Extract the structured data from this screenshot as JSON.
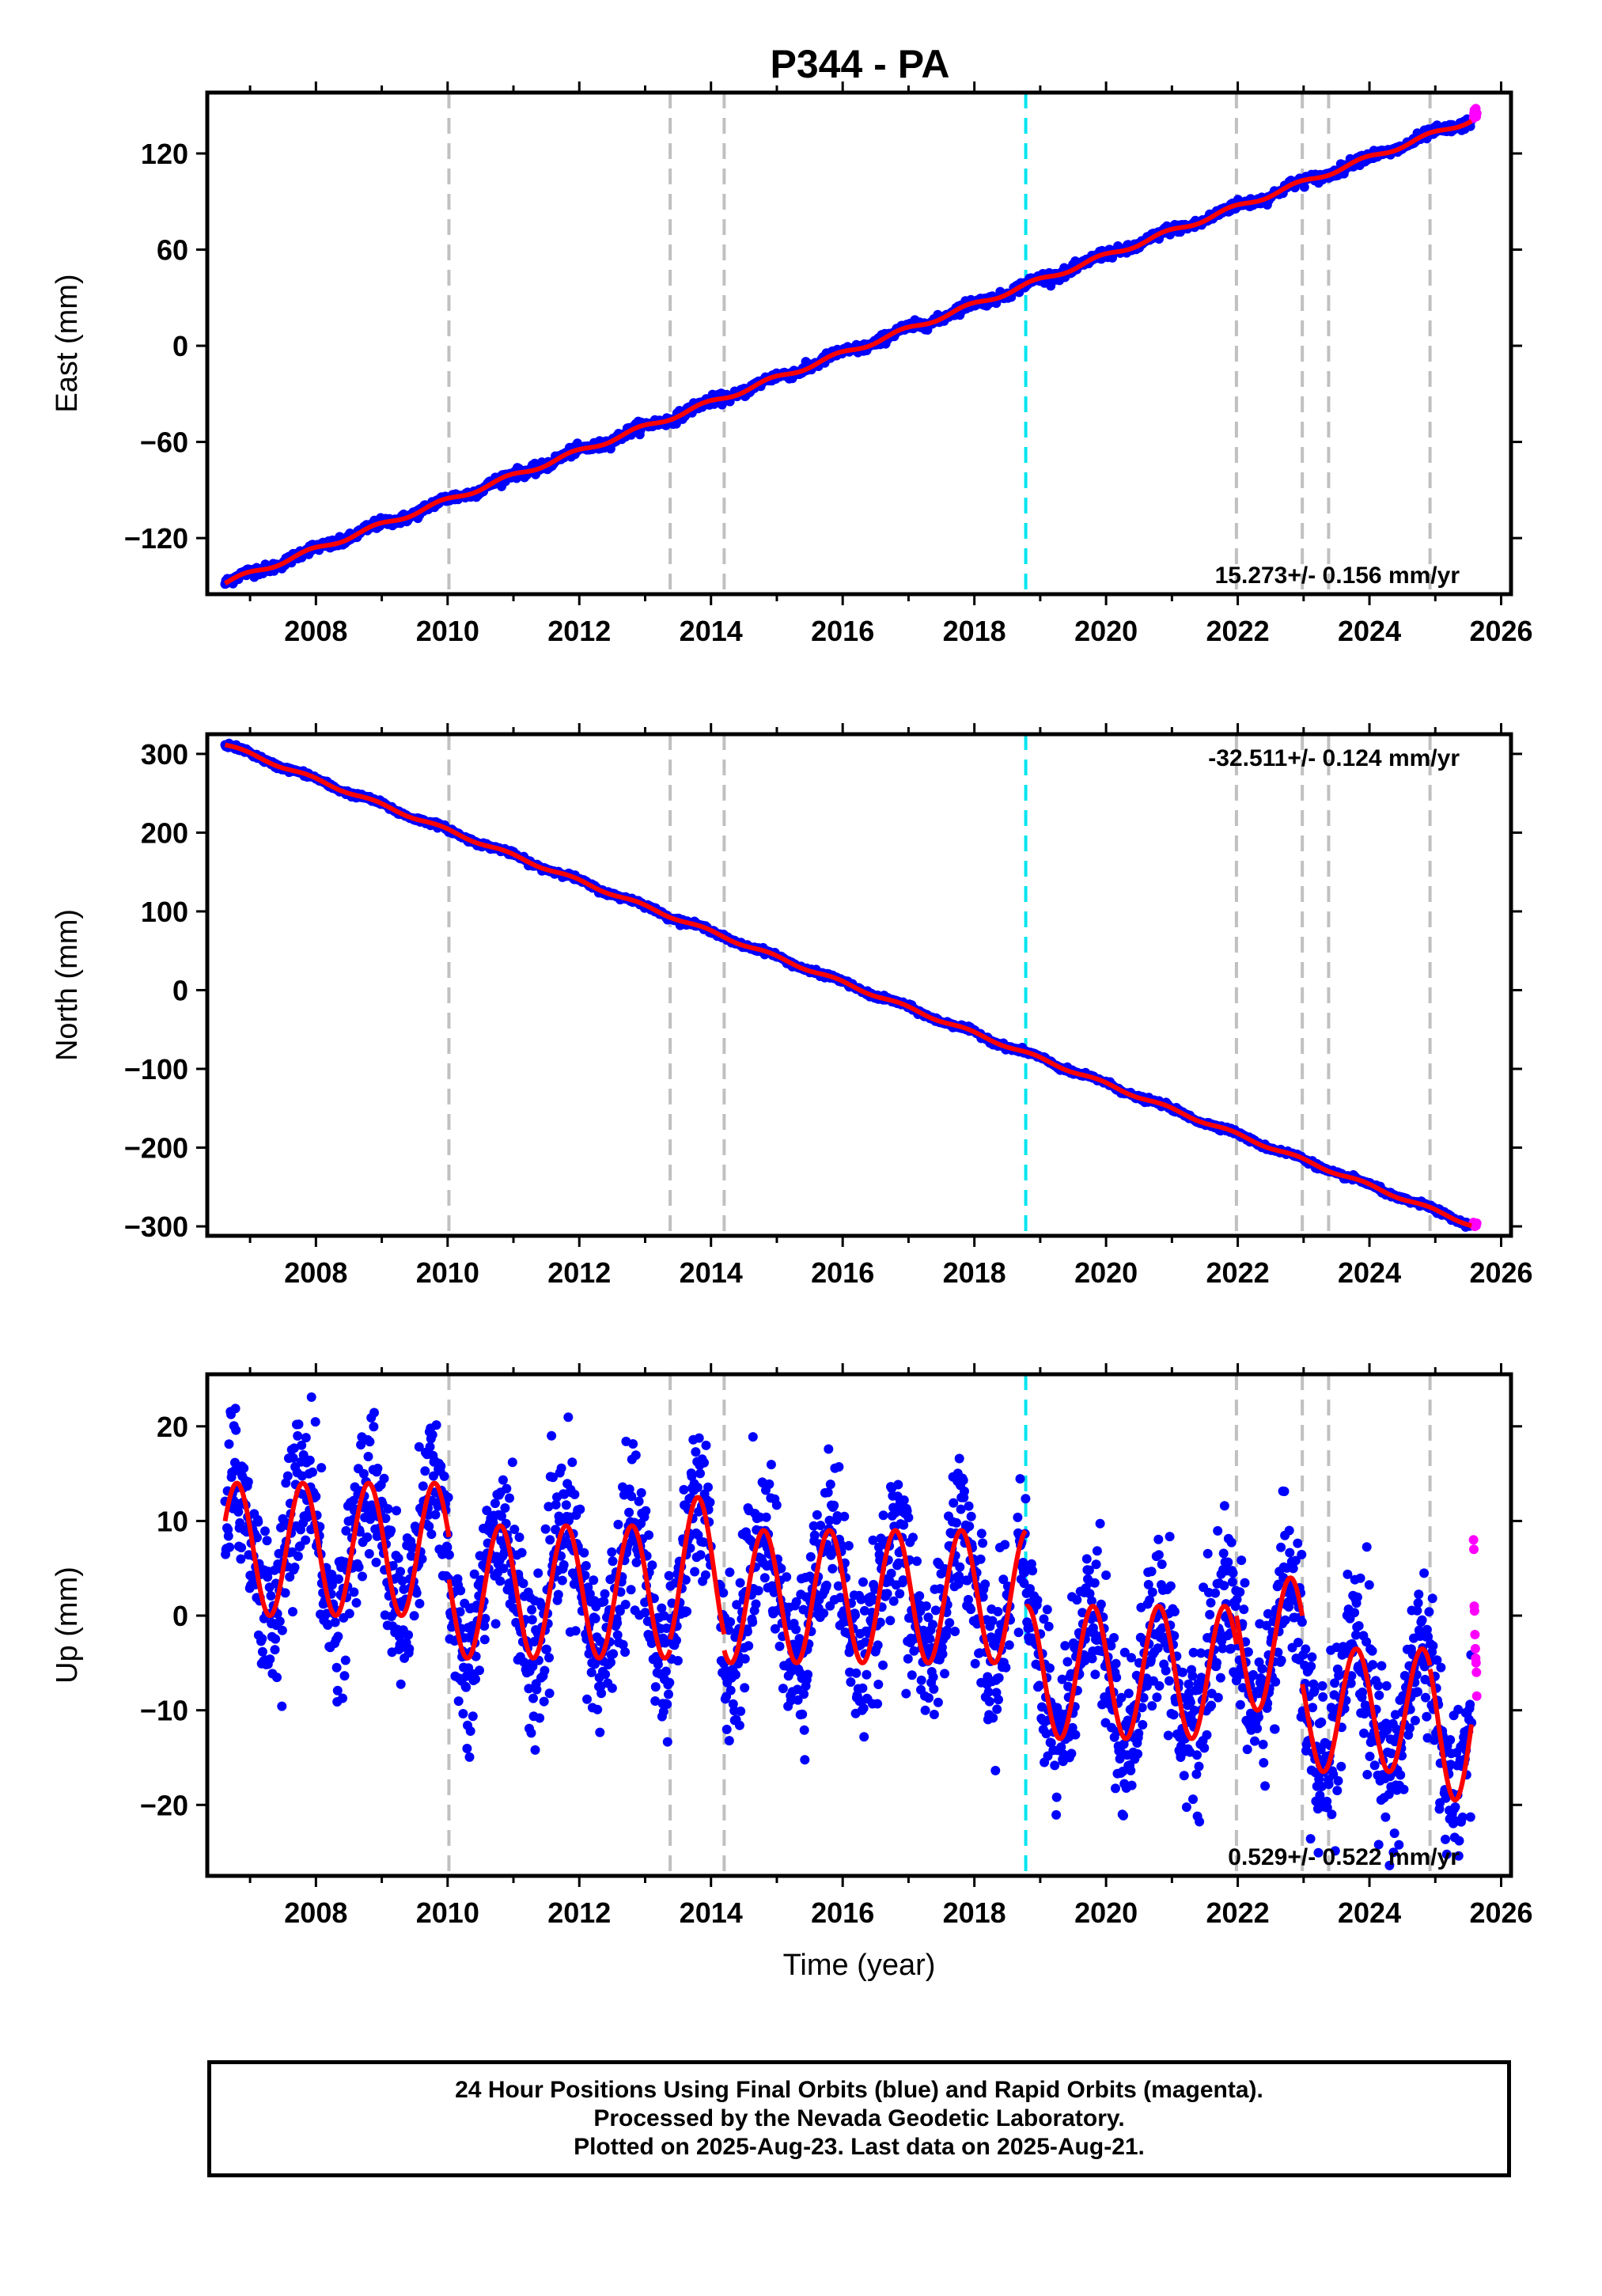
{
  "title": "P344 - PA",
  "footer": {
    "line1": "24 Hour Positions Using Final Orbits (blue) and Rapid Orbits (magenta).",
    "line2": "Processed by the Nevada Geodetic Laboratory.",
    "line3": "Plotted on 2025-Aug-23. Last data on 2025-Aug-21."
  },
  "colors": {
    "final_orbits": "#0000ff",
    "rapid_orbits": "#ff00ff",
    "model_fit": "#ff0000",
    "equipment_change_line": "#c0c0c0",
    "earthquake_line": "#00e5ee"
  },
  "chart_data": [
    {
      "type": "scatter",
      "panel": "east",
      "ylabel": "East (mm)",
      "xlabel": "",
      "xlim": [
        2006.35,
        2026.15
      ],
      "ylim": [
        -155,
        158
      ],
      "xticks": [
        2008,
        2010,
        2012,
        2014,
        2016,
        2018,
        2020,
        2022,
        2024,
        2026
      ],
      "yticks": [
        -120,
        -60,
        0,
        60,
        120
      ],
      "vlines_gray": [
        2010.02,
        2013.38,
        2014.2,
        2021.98,
        2022.98,
        2023.38,
        2024.92
      ],
      "vlines_cyan": [
        2018.78
      ],
      "rate_text": "15.273+/- 0.156 mm/yr",
      "rate_position": "bottom-right",
      "trend": {
        "t_start": 2006.62,
        "t_end": 2025.55,
        "y_start": -148,
        "y_end": 141,
        "seasonal_amplitude": 1.5,
        "seasonal_phase_year": 2006.9
      },
      "scatter_sd": 1.5,
      "rapid_points": {
        "t_start": 2025.58,
        "t_end": 2025.63,
        "values": [
          142,
          145,
          147,
          144,
          146,
          148,
          143,
          145
        ]
      },
      "series": [
        {
          "name": "Final Orbits",
          "color": "#0000ff"
        },
        {
          "name": "Rapid Orbits",
          "color": "#ff00ff"
        },
        {
          "name": "Model",
          "color": "#ff0000"
        }
      ]
    },
    {
      "type": "scatter",
      "panel": "north",
      "ylabel": "North (mm)",
      "xlabel": "",
      "xlim": [
        2006.35,
        2026.15
      ],
      "ylim": [
        -312,
        325
      ],
      "xticks": [
        2008,
        2010,
        2012,
        2014,
        2016,
        2018,
        2020,
        2022,
        2024,
        2026
      ],
      "yticks": [
        -300,
        -200,
        -100,
        0,
        100,
        200,
        300
      ],
      "vlines_gray": [
        2010.02,
        2013.38,
        2014.2,
        2021.98,
        2022.98,
        2023.38,
        2024.92
      ],
      "vlines_cyan": [
        2018.78
      ],
      "rate_text": "-32.511+/- 0.124 mm/yr",
      "rate_position": "top-right",
      "trend": {
        "t_start": 2006.62,
        "t_end": 2025.55,
        "y_start": 312,
        "y_end": -298,
        "seasonal_amplitude": 2.0,
        "seasonal_phase_year": 2006.9
      },
      "scatter_sd": 1.5,
      "rapid_points": {
        "t_start": 2025.58,
        "t_end": 2025.63,
        "values": [
          -295,
          -298,
          -300,
          -297,
          -299,
          -296
        ]
      },
      "series": [
        {
          "name": "Final Orbits",
          "color": "#0000ff"
        },
        {
          "name": "Rapid Orbits",
          "color": "#ff00ff"
        },
        {
          "name": "Model",
          "color": "#ff0000"
        }
      ]
    },
    {
      "type": "scatter",
      "panel": "up",
      "ylabel": "Up (mm)",
      "xlabel": "Time (year)",
      "xlim": [
        2006.35,
        2026.15
      ],
      "ylim": [
        -27.5,
        25.5
      ],
      "xticks": [
        2008,
        2010,
        2012,
        2014,
        2016,
        2018,
        2020,
        2022,
        2024,
        2026
      ],
      "yticks": [
        -20,
        -10,
        0,
        10,
        20
      ],
      "vlines_gray": [
        2010.02,
        2013.38,
        2014.2,
        2021.98,
        2022.98,
        2023.38,
        2024.92
      ],
      "vlines_cyan": [
        2018.78
      ],
      "rate_text": "0.529+/- 0.522 mm/yr",
      "rate_position": "bottom-right",
      "up_model": {
        "segments": [
          {
            "t_start": 2006.62,
            "t_end": 2010.02,
            "base": 7.0,
            "amplitude": 7.0
          },
          {
            "t_start": 2010.02,
            "t_end": 2013.38,
            "base": 2.5,
            "amplitude": 7.0
          },
          {
            "t_start": 2013.38,
            "t_end": 2014.2,
            "base": 4.5,
            "amplitude": 8.0
          },
          {
            "t_start": 2014.2,
            "t_end": 2018.78,
            "base": 2.0,
            "amplitude": 7.0
          },
          {
            "t_start": 2018.78,
            "t_end": 2021.98,
            "base": -6.0,
            "amplitude": 7.0
          },
          {
            "t_start": 2021.98,
            "t_end": 2022.98,
            "base": -3.0,
            "amplitude": 7.0
          },
          {
            "t_start": 2022.98,
            "t_end": 2024.92,
            "base": -10.0,
            "amplitude": 6.5
          },
          {
            "t_start": 2024.92,
            "t_end": 2025.55,
            "base": -11.5,
            "amplitude": 8.0
          }
        ],
        "peak_phase_year": 2006.8
      },
      "scatter_sd": 4.0,
      "rapid_points": {
        "t_start": 2025.58,
        "t_end": 2025.63,
        "values": [
          8,
          7,
          1,
          0.5,
          -2,
          -3.5,
          -4.5,
          -5,
          -6,
          -8.5
        ]
      },
      "series": [
        {
          "name": "Final Orbits",
          "color": "#0000ff"
        },
        {
          "name": "Rapid Orbits",
          "color": "#ff00ff"
        },
        {
          "name": "Model",
          "color": "#ff0000"
        }
      ]
    }
  ]
}
